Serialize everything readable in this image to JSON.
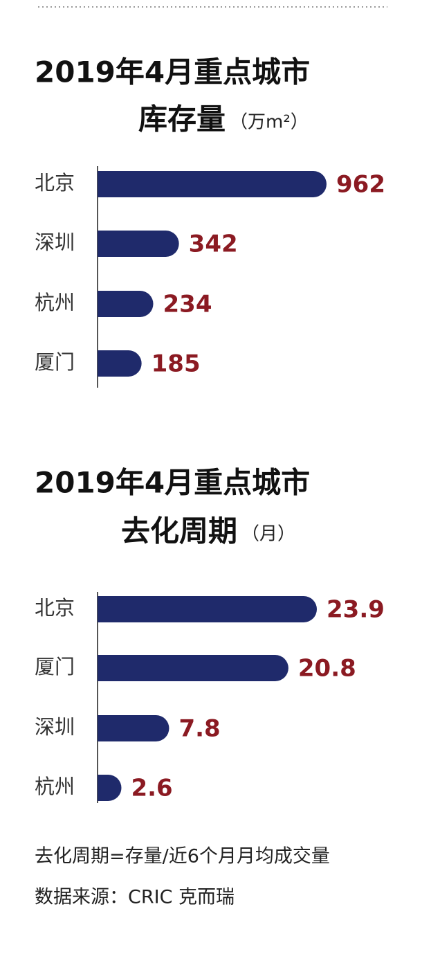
{
  "chart_data": [
    {
      "type": "bar",
      "title": "2019年4月重点城市",
      "subtitle": "库存量",
      "unit": "（万m²）",
      "categories": [
        "北京",
        "深圳",
        "杭州",
        "厦门"
      ],
      "values": [
        962,
        342,
        234,
        185
      ],
      "color": "#1f2a6b",
      "value_label_color": "#8b1a22"
    },
    {
      "type": "bar",
      "title": "2019年4月重点城市",
      "subtitle": "去化周期",
      "unit": "（月）",
      "categories": [
        "北京",
        "厦门",
        "深圳",
        "杭州"
      ],
      "values": [
        23.9,
        20.8,
        7.8,
        2.6
      ],
      "color": "#1f2a6b",
      "value_label_color": "#8b1a22"
    }
  ],
  "footer": {
    "lines": [
      "去化周期=存量/近6个月月均成交量",
      "数据来源：CRIC 克而瑞"
    ]
  }
}
